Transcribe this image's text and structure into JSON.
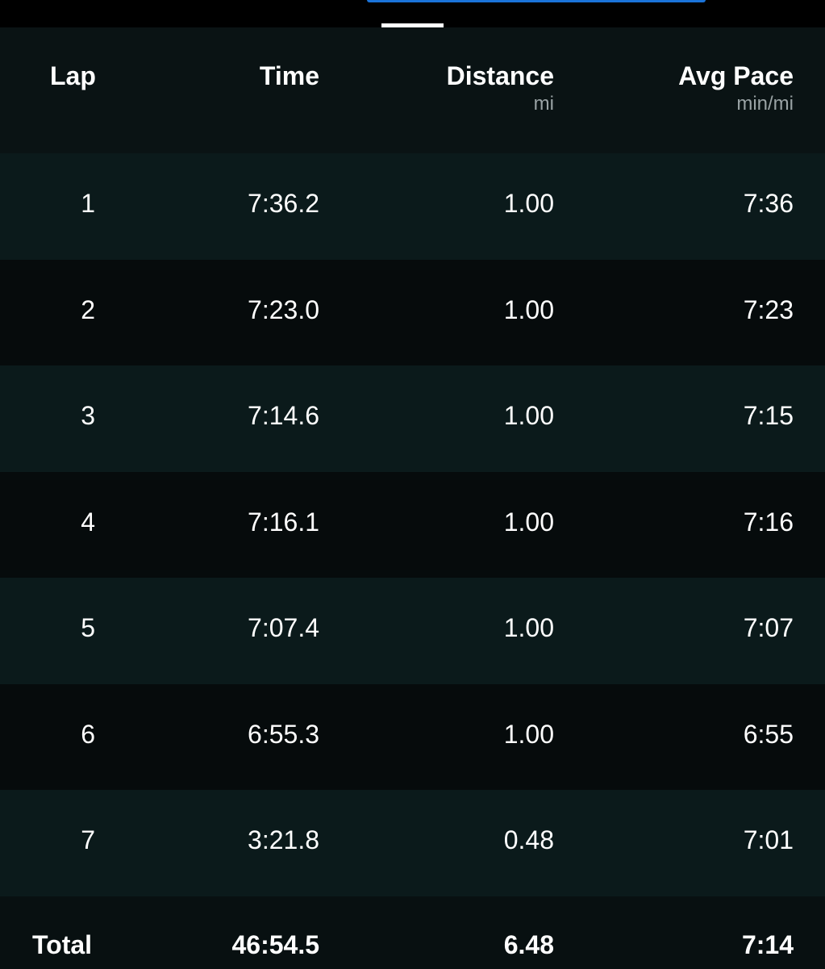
{
  "colors": {
    "accent": "#1a73d9",
    "header_bg": "#0a1314",
    "row_odd": "#0b1a1b",
    "row_even": "#060b0c"
  },
  "columns": [
    {
      "label": "Lap",
      "unit": ""
    },
    {
      "label": "Time",
      "unit": ""
    },
    {
      "label": "Distance",
      "unit": "mi"
    },
    {
      "label": "Avg Pace",
      "unit": "min/mi"
    }
  ],
  "rows": [
    [
      "1",
      "7:36.2",
      "1.00",
      "7:36"
    ],
    [
      "2",
      "7:23.0",
      "1.00",
      "7:23"
    ],
    [
      "3",
      "7:14.6",
      "1.00",
      "7:15"
    ],
    [
      "4",
      "7:16.1",
      "1.00",
      "7:16"
    ],
    [
      "5",
      "7:07.4",
      "1.00",
      "7:07"
    ],
    [
      "6",
      "6:55.3",
      "1.00",
      "6:55"
    ],
    [
      "7",
      "3:21.8",
      "0.48",
      "7:01"
    ]
  ],
  "total": [
    "Total",
    "46:54.5",
    "6.48",
    "7:14"
  ]
}
